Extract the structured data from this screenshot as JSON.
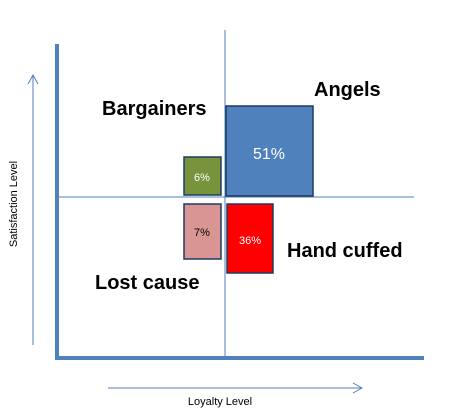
{
  "axes": {
    "x_label": "Loyalty Level",
    "y_label": "Satisfaction Level"
  },
  "segments": [
    {
      "id": "angels",
      "name": "Angels",
      "percent": 51,
      "percent_label": "51%",
      "color": "#4F81BD"
    },
    {
      "id": "bargainers",
      "name": "Bargainers",
      "percent": 6,
      "percent_label": "6%",
      "color": "#77933C"
    },
    {
      "id": "lost",
      "name": "Lost cause",
      "percent": 7,
      "percent_label": "7%",
      "color": "#D99594"
    },
    {
      "id": "handcuffed",
      "name": "Hand cuffed",
      "percent": 36,
      "percent_label": "36%",
      "color": "#FF0000"
    }
  ],
  "colors": {
    "axis": "#4F81BD",
    "arrow": "#4F81BD",
    "box_border": "#1F3A5F"
  }
}
